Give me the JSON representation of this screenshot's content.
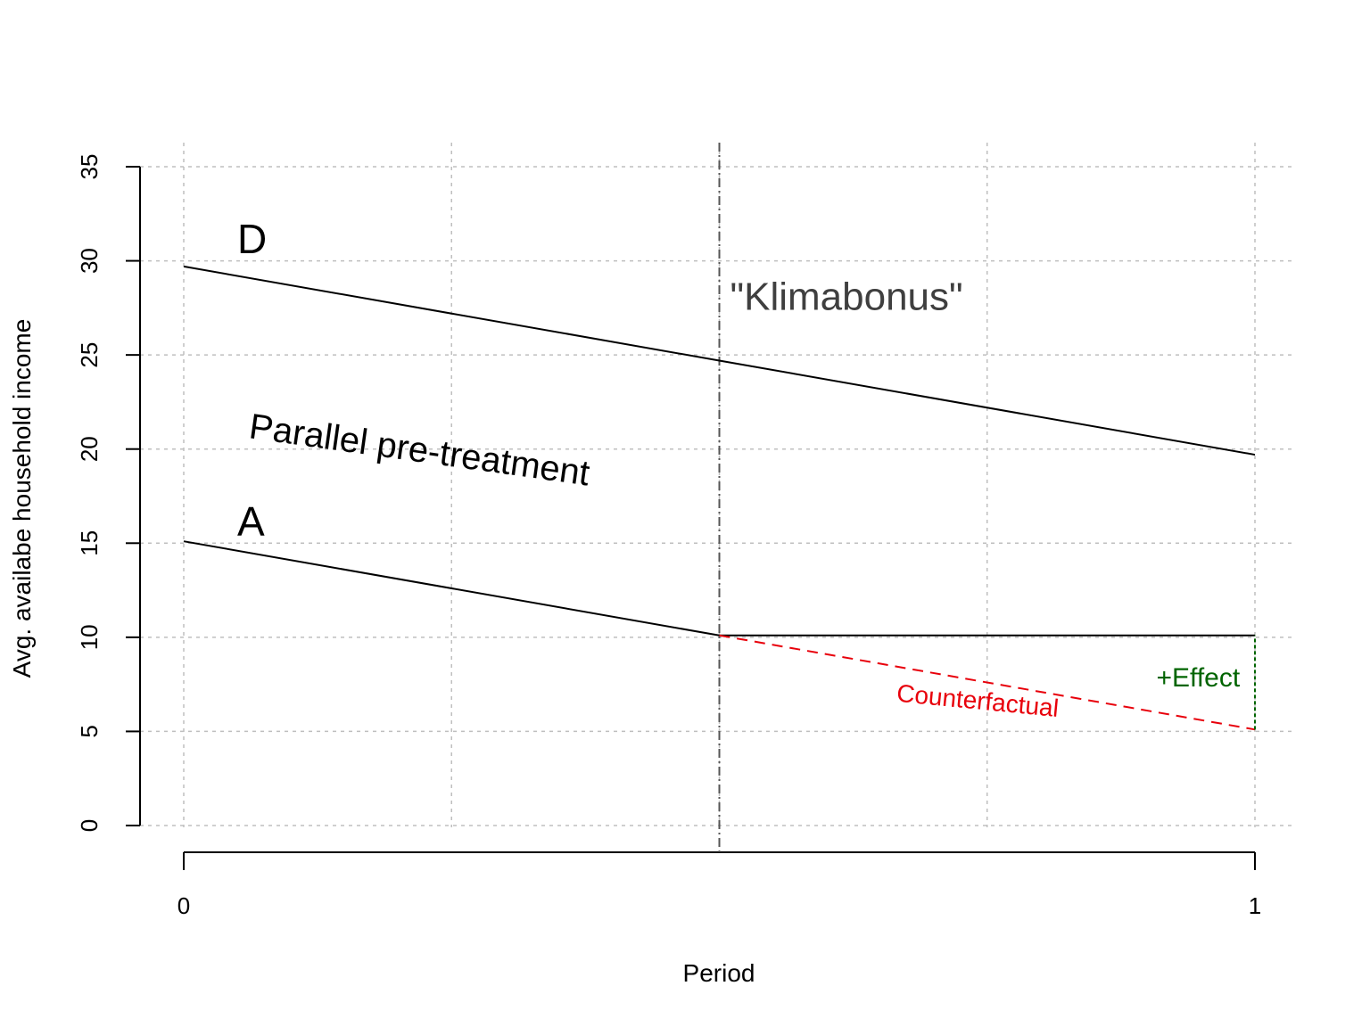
{
  "chart_data": {
    "type": "line",
    "title": "",
    "xlabel": "Period",
    "ylabel": "Avg. availabe household income",
    "xlim": [
      0,
      1
    ],
    "ylim": [
      0,
      35
    ],
    "x_ticks": [
      0,
      1
    ],
    "x_tick_labels": [
      "0",
      "1"
    ],
    "y_ticks": [
      0,
      5,
      10,
      15,
      20,
      25,
      30,
      35
    ],
    "y_tick_labels": [
      "0",
      "5",
      "10",
      "15",
      "20",
      "25",
      "30",
      "35"
    ],
    "x_grid": [
      0,
      0.25,
      0.5,
      0.75,
      1
    ],
    "grid": true,
    "legend": "none",
    "treatment_x": 0.5,
    "series": [
      {
        "name": "D",
        "x": [
          0,
          0.5,
          1
        ],
        "values": [
          29.7,
          24.7,
          19.7
        ],
        "color": "#000000",
        "style": "solid"
      },
      {
        "name": "A",
        "x": [
          0,
          0.5,
          1
        ],
        "values": [
          15.1,
          10.1,
          10.1
        ],
        "color": "#000000",
        "style": "solid"
      },
      {
        "name": "Counterfactual",
        "x": [
          0.5,
          1
        ],
        "values": [
          10.1,
          5.1
        ],
        "color": "#e8000b",
        "style": "dashed"
      },
      {
        "name": "+Effect",
        "x": [
          1,
          1
        ],
        "values": [
          5.1,
          10.1
        ],
        "color": "#006400",
        "style": "dashed"
      }
    ],
    "annotations": [
      {
        "text": "D",
        "x": 0.05,
        "y": 30.4,
        "color": "#000000"
      },
      {
        "text": "A",
        "x": 0.05,
        "y": 15.4,
        "color": "#000000"
      },
      {
        "text": "\"Klimabonus\"",
        "x": 0.51,
        "y": 27.4,
        "color": "#3f3f3f"
      },
      {
        "text": "Parallel pre-treatment",
        "x": 0.06,
        "y": 20.6,
        "color": "#000000",
        "rotation": 8
      },
      {
        "text": "Counterfactual",
        "x": 0.665,
        "y": 6.6,
        "color": "#e8000b",
        "rotation": 5.5
      },
      {
        "text": "+Effect",
        "x": 0.908,
        "y": 7.4,
        "color": "#006400"
      }
    ]
  }
}
